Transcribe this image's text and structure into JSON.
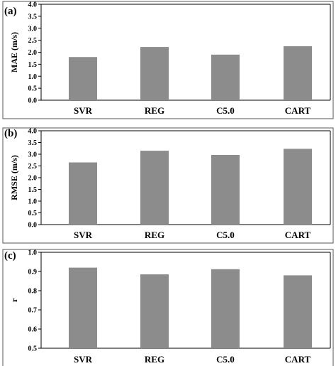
{
  "chart_data": [
    {
      "type": "bar",
      "panel_label": "(a)",
      "categories": [
        "SVR",
        "REG",
        "C5.0",
        "CART"
      ],
      "values": [
        1.8,
        2.22,
        1.9,
        2.25
      ],
      "ylabel": "MAE (m/s)",
      "ylim": [
        0.0,
        4.0
      ],
      "yticks": [
        "0.0",
        "0.5",
        "1.0",
        "1.5",
        "2.0",
        "2.5",
        "3.0",
        "3.5",
        "4.0"
      ]
    },
    {
      "type": "bar",
      "panel_label": "(b)",
      "categories": [
        "SVR",
        "REG",
        "C5.0",
        "CART"
      ],
      "values": [
        2.65,
        3.15,
        2.97,
        3.23
      ],
      "ylabel": "RMSE (m/s)",
      "ylim": [
        0.0,
        4.0
      ],
      "yticks": [
        "0.0",
        "0.5",
        "1.0",
        "1.5",
        "2.0",
        "2.5",
        "3.0",
        "3.5",
        "4.0"
      ]
    },
    {
      "type": "bar",
      "panel_label": "(c)",
      "categories": [
        "SVR",
        "REG",
        "C5.0",
        "CART"
      ],
      "values": [
        0.92,
        0.885,
        0.912,
        0.88
      ],
      "ylabel": "r",
      "ylim": [
        0.5,
        1.0
      ],
      "yticks": [
        "0.5",
        "0.6",
        "0.7",
        "0.8",
        "0.9",
        "1.0"
      ]
    }
  ],
  "colors": {
    "bar": "#8c8c8c",
    "frame": "#555555"
  }
}
